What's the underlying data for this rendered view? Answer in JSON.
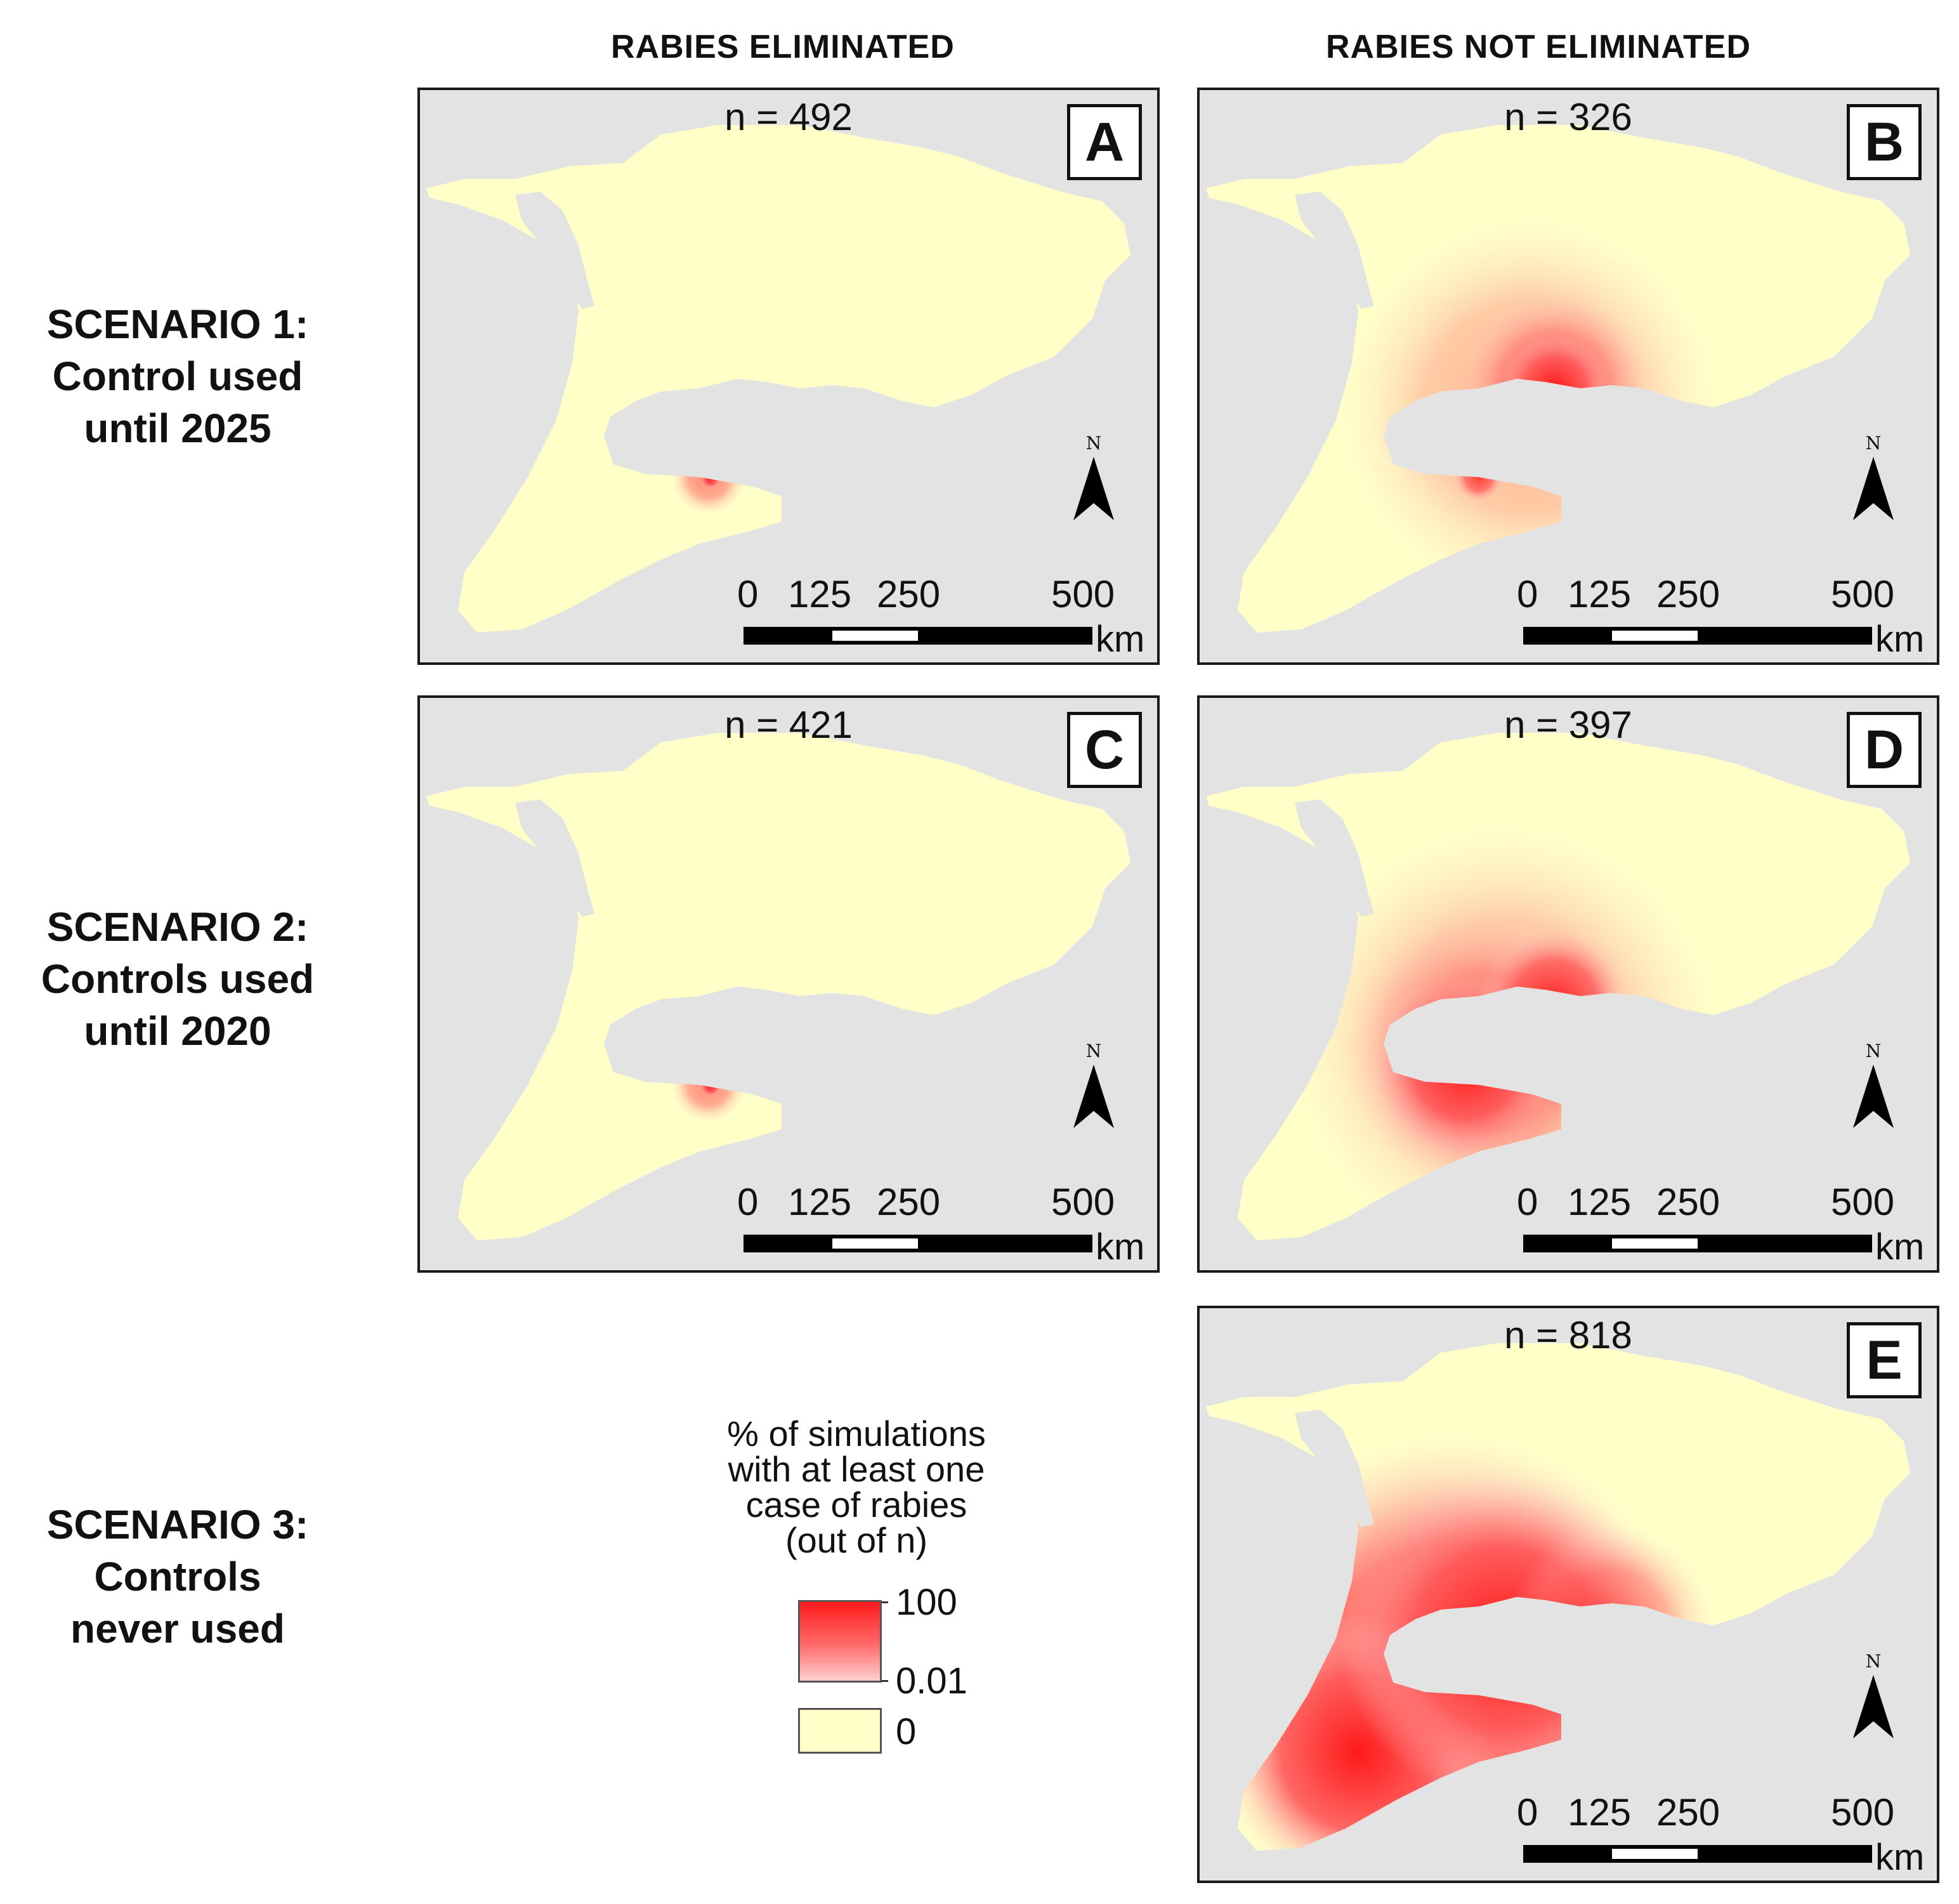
{
  "columns": [
    "RABIES ELIMINATED",
    "RABIES NOT ELIMINATED"
  ],
  "rows": [
    {
      "lines": [
        "SCENARIO 1:",
        "Control used",
        "until 2025"
      ]
    },
    {
      "lines": [
        "SCENARIO 2:",
        "Controls used",
        "until 2020"
      ]
    },
    {
      "lines": [
        "SCENARIO 3:",
        "Controls",
        "never used"
      ]
    }
  ],
  "panels": [
    {
      "letter": "A",
      "n_label": "n = 492",
      "n": 492,
      "hotspot": "small"
    },
    {
      "letter": "B",
      "n_label": "n = 326",
      "n": 326,
      "hotspot": "medium"
    },
    {
      "letter": "C",
      "n_label": "n = 421",
      "n": 421,
      "hotspot": "small"
    },
    {
      "letter": "D",
      "n_label": "n = 397",
      "n": 397,
      "hotspot": "large"
    },
    {
      "letter": "E",
      "n_label": "n = 818",
      "n": 818,
      "hotspot": "widespread"
    }
  ],
  "scale": {
    "ticks": [
      "0",
      "125",
      "250",
      "500"
    ],
    "unit": "km"
  },
  "north_label": "N",
  "legend": {
    "title": "% of simulations\nwith at least one\ncase of rabies\n(out of n)",
    "max_label": "100",
    "min_label": "0.01",
    "zero_label": "0",
    "colors": {
      "high": "#ff1a1a",
      "low": "#ffd0d0",
      "zero": "#ffffc8",
      "water": "#e3e3e3"
    }
  }
}
